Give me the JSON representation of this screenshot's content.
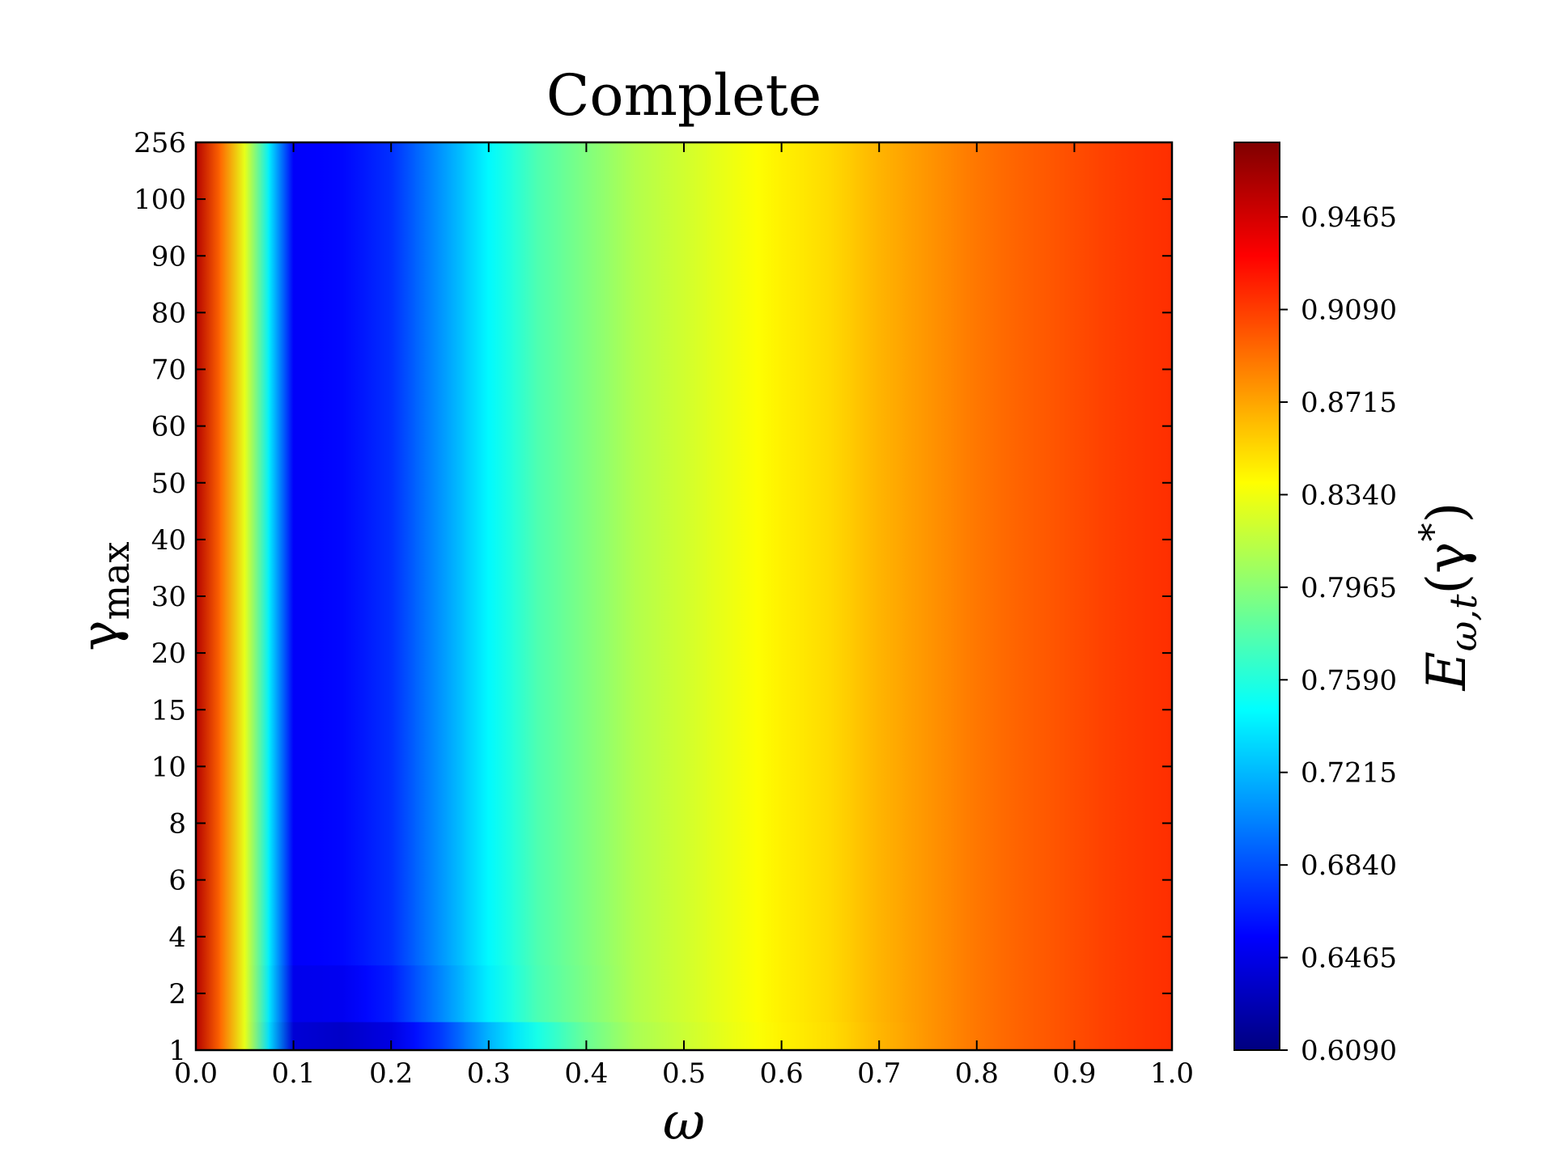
{
  "chart_data": {
    "type": "heatmap",
    "title": "Complete",
    "xlabel": "ω",
    "ylabel": [
      "γ",
      "max"
    ],
    "colorbar_label": [
      "E",
      "ω,t",
      "(γ",
      "*",
      ")"
    ],
    "colormap": "jet",
    "x": [
      0,
      0.05,
      0.1,
      0.15,
      0.2,
      0.25,
      0.3,
      0.35,
      0.4,
      0.45,
      0.5,
      0.55,
      0.6,
      0.65,
      0.7,
      0.75,
      0.8,
      0.85,
      0.9,
      0.95,
      1.0
    ],
    "y_categories": [
      "1",
      "2",
      "4",
      "6",
      "8",
      "10",
      "15",
      "20",
      "30",
      "40",
      "50",
      "60",
      "70",
      "80",
      "90",
      "100",
      "256"
    ],
    "z": [
      [
        0.958,
        0.83,
        0.64,
        0.635,
        0.645,
        0.675,
        0.72,
        0.755,
        0.785,
        0.808,
        0.82,
        0.832,
        0.843,
        0.851,
        0.865,
        0.877,
        0.888,
        0.896,
        0.903,
        0.91,
        0.914
      ],
      [
        0.958,
        0.83,
        0.648,
        0.65,
        0.665,
        0.703,
        0.742,
        0.774,
        0.792,
        0.811,
        0.822,
        0.833,
        0.844,
        0.852,
        0.866,
        0.877,
        0.888,
        0.896,
        0.903,
        0.91,
        0.914
      ],
      [
        0.958,
        0.83,
        0.653,
        0.657,
        0.672,
        0.708,
        0.745,
        0.775,
        0.793,
        0.811,
        0.822,
        0.833,
        0.844,
        0.852,
        0.866,
        0.877,
        0.888,
        0.896,
        0.903,
        0.91,
        0.914
      ],
      [
        0.958,
        0.83,
        0.653,
        0.657,
        0.672,
        0.708,
        0.745,
        0.775,
        0.793,
        0.811,
        0.822,
        0.833,
        0.844,
        0.852,
        0.866,
        0.877,
        0.888,
        0.896,
        0.903,
        0.91,
        0.914
      ],
      [
        0.958,
        0.83,
        0.653,
        0.657,
        0.672,
        0.708,
        0.745,
        0.775,
        0.793,
        0.811,
        0.822,
        0.833,
        0.844,
        0.852,
        0.866,
        0.877,
        0.888,
        0.896,
        0.903,
        0.91,
        0.914
      ],
      [
        0.958,
        0.83,
        0.653,
        0.657,
        0.672,
        0.708,
        0.745,
        0.775,
        0.793,
        0.811,
        0.822,
        0.833,
        0.844,
        0.852,
        0.866,
        0.877,
        0.888,
        0.896,
        0.903,
        0.91,
        0.914
      ],
      [
        0.958,
        0.83,
        0.653,
        0.657,
        0.672,
        0.708,
        0.745,
        0.775,
        0.793,
        0.811,
        0.822,
        0.833,
        0.844,
        0.852,
        0.866,
        0.877,
        0.888,
        0.896,
        0.903,
        0.91,
        0.914
      ],
      [
        0.958,
        0.83,
        0.653,
        0.657,
        0.672,
        0.708,
        0.745,
        0.775,
        0.793,
        0.811,
        0.822,
        0.833,
        0.844,
        0.852,
        0.866,
        0.877,
        0.888,
        0.896,
        0.903,
        0.91,
        0.914
      ],
      [
        0.958,
        0.83,
        0.653,
        0.657,
        0.672,
        0.708,
        0.745,
        0.775,
        0.793,
        0.811,
        0.822,
        0.833,
        0.844,
        0.852,
        0.866,
        0.877,
        0.888,
        0.896,
        0.903,
        0.91,
        0.914
      ],
      [
        0.958,
        0.83,
        0.653,
        0.657,
        0.672,
        0.708,
        0.745,
        0.775,
        0.793,
        0.811,
        0.822,
        0.833,
        0.844,
        0.852,
        0.866,
        0.877,
        0.888,
        0.896,
        0.903,
        0.91,
        0.914
      ],
      [
        0.958,
        0.83,
        0.653,
        0.657,
        0.672,
        0.708,
        0.745,
        0.775,
        0.793,
        0.811,
        0.822,
        0.833,
        0.844,
        0.852,
        0.866,
        0.877,
        0.888,
        0.896,
        0.903,
        0.91,
        0.914
      ],
      [
        0.958,
        0.83,
        0.653,
        0.657,
        0.672,
        0.708,
        0.745,
        0.775,
        0.793,
        0.811,
        0.822,
        0.833,
        0.844,
        0.852,
        0.866,
        0.877,
        0.888,
        0.896,
        0.903,
        0.91,
        0.914
      ],
      [
        0.958,
        0.83,
        0.653,
        0.657,
        0.672,
        0.708,
        0.745,
        0.775,
        0.793,
        0.811,
        0.822,
        0.833,
        0.844,
        0.852,
        0.866,
        0.877,
        0.888,
        0.896,
        0.903,
        0.91,
        0.914
      ],
      [
        0.958,
        0.83,
        0.653,
        0.657,
        0.672,
        0.708,
        0.745,
        0.775,
        0.793,
        0.811,
        0.822,
        0.833,
        0.844,
        0.852,
        0.866,
        0.877,
        0.888,
        0.896,
        0.903,
        0.91,
        0.914
      ],
      [
        0.958,
        0.83,
        0.653,
        0.657,
        0.672,
        0.708,
        0.745,
        0.775,
        0.793,
        0.811,
        0.822,
        0.833,
        0.844,
        0.852,
        0.866,
        0.877,
        0.888,
        0.896,
        0.903,
        0.91,
        0.914
      ],
      [
        0.958,
        0.83,
        0.653,
        0.657,
        0.672,
        0.708,
        0.745,
        0.775,
        0.793,
        0.811,
        0.822,
        0.833,
        0.844,
        0.852,
        0.866,
        0.877,
        0.888,
        0.896,
        0.903,
        0.91,
        0.914
      ],
      [
        0.958,
        0.83,
        0.653,
        0.657,
        0.672,
        0.708,
        0.745,
        0.775,
        0.793,
        0.811,
        0.822,
        0.833,
        0.844,
        0.852,
        0.866,
        0.877,
        0.888,
        0.896,
        0.903,
        0.91,
        0.914
      ]
    ],
    "xlim": [
      0,
      1
    ],
    "xticks": [
      {
        "value": 0,
        "label": "0.0"
      },
      0.1,
      0.2,
      0.3,
      0.4,
      0.5,
      0.6,
      0.7,
      0.8,
      0.9,
      {
        "value": 1,
        "label": "1.0"
      }
    ],
    "clim": [
      0.609,
      0.9767
    ],
    "cticks": [
      {
        "value": 0.609,
        "label": "0.6090"
      },
      0.6465,
      {
        "value": 0.684,
        "label": "0.6840"
      },
      0.7215,
      {
        "value": 0.759,
        "label": "0.7590"
      },
      0.7965,
      {
        "value": 0.834,
        "label": "0.8340"
      },
      0.8715,
      {
        "value": 0.909,
        "label": "0.9090"
      },
      0.9465
    ]
  }
}
